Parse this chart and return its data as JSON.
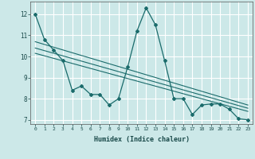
{
  "title": "",
  "xlabel": "Humidex (Indice chaleur)",
  "ylabel": "",
  "bg_color": "#cce8e8",
  "grid_color": "#ffffff",
  "line_color": "#1a6b6b",
  "xlim": [
    -0.5,
    23.5
  ],
  "ylim": [
    6.8,
    12.6
  ],
  "xticks": [
    0,
    1,
    2,
    3,
    4,
    5,
    6,
    7,
    8,
    9,
    10,
    11,
    12,
    13,
    14,
    15,
    16,
    17,
    18,
    19,
    20,
    21,
    22,
    23
  ],
  "yticks": [
    7,
    8,
    9,
    10,
    11,
    12
  ],
  "main_x": [
    0,
    1,
    2,
    3,
    4,
    5,
    6,
    7,
    8,
    9,
    10,
    11,
    12,
    13,
    14,
    15,
    16,
    17,
    18,
    19,
    20,
    21,
    22,
    23
  ],
  "main_y": [
    12.0,
    10.8,
    10.3,
    9.8,
    8.4,
    8.6,
    8.2,
    8.2,
    7.7,
    8.0,
    9.5,
    11.2,
    12.3,
    11.5,
    9.8,
    8.0,
    8.0,
    7.25,
    7.7,
    7.75,
    7.75,
    7.5,
    7.05,
    7.0
  ],
  "trend1_x": [
    0,
    23
  ],
  "trend1_y": [
    10.7,
    7.7
  ],
  "trend2_x": [
    0,
    23
  ],
  "trend2_y": [
    10.4,
    7.55
  ],
  "trend3_x": [
    0,
    23
  ],
  "trend3_y": [
    10.15,
    7.4
  ]
}
